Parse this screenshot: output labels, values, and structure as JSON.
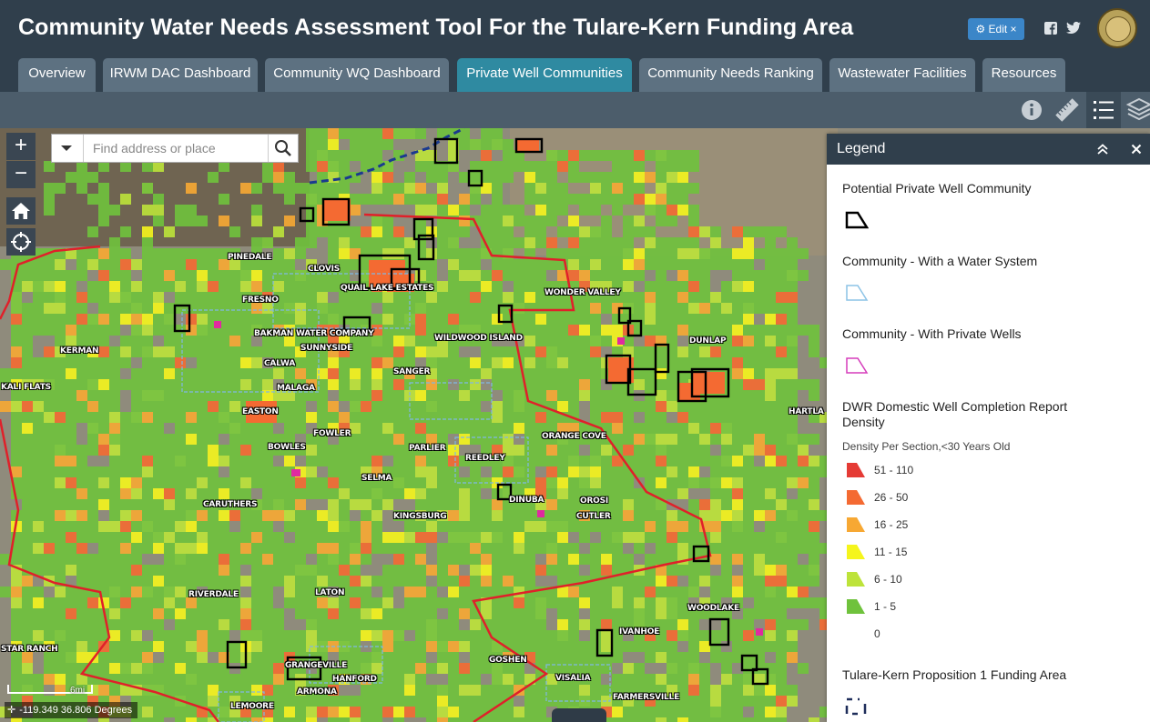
{
  "app": {
    "title": "Community Water Needs Assessment Tool For the Tulare-Kern Funding Area"
  },
  "header": {
    "edit_label": "⚙ Edit ×",
    "social": [
      "facebook-icon",
      "twitter-icon"
    ],
    "seal": "county-seal"
  },
  "tabs": [
    {
      "label": "Overview"
    },
    {
      "label": "IRWM DAC Dashboard"
    },
    {
      "label": "Community WQ Dashboard"
    },
    {
      "label": "Private Well Communities",
      "active": true
    },
    {
      "label": "Community Needs Ranking"
    },
    {
      "label": "Wastewater Facilities"
    },
    {
      "label": "Resources"
    }
  ],
  "toolbar": [
    "info-icon",
    "measure-icon",
    "legend-icon",
    "layers-icon"
  ],
  "map": {
    "zoom_in": "+",
    "zoom_out": "−",
    "search_placeholder": "Find address or place",
    "coordinates": "-119.349 36.806 Degrees",
    "scale": "6mi",
    "places": [
      "PINEDALE",
      "CLOVIS",
      "QUAIL LAKE ESTATES",
      "FRESNO",
      "WONDER VALLEY",
      "BAKMAN WATER COMPANY",
      "WILDWOOD ISLAND",
      "SUNNYSIDE",
      "KERMAN",
      "CALWA",
      "DUNLAP",
      "SANGER",
      "KALI FLATS",
      "MALAGA",
      "EASTON",
      "HARTLA",
      "FOWLER",
      "ORANGE COVE",
      "BOWLES",
      "PARLIER",
      "REEDLEY",
      "SELMA",
      "DINUBA",
      "OROSI",
      "CARUTHERS",
      "KINGSBURG",
      "CUTLER",
      "RIVERDALE",
      "LATON",
      "WOODLAKE",
      "IVANHOE",
      "STAR RANCH",
      "GRANGEVILLE",
      "GOSHEN",
      "HANFORD",
      "ARMONA",
      "VISALIA",
      "LEMOORE",
      "FARMERSVILLE"
    ]
  },
  "legend": {
    "title": "Legend",
    "layers": {
      "private_well": "Potential Private Well Community",
      "water_system": "Community - With a Water System",
      "private_wells": "Community - With Private Wells",
      "density_title": "DWR Domestic Well Completion Report Density",
      "density_subtitle": "Density Per Section,<30 Years Old",
      "funding_area": "Tulare-Kern Proposition 1 Funding Area"
    },
    "classes": [
      {
        "label": "51 - 110",
        "color": "#e53b35"
      },
      {
        "label": "26 - 50",
        "color": "#f46a32"
      },
      {
        "label": "16 - 25",
        "color": "#f7a833"
      },
      {
        "label": "11 - 15",
        "color": "#f5f51c"
      },
      {
        "label": "6 - 10",
        "color": "#bde33a"
      },
      {
        "label": "1 - 5",
        "color": "#6fc23c"
      },
      {
        "label": "0",
        "color": ""
      }
    ]
  }
}
